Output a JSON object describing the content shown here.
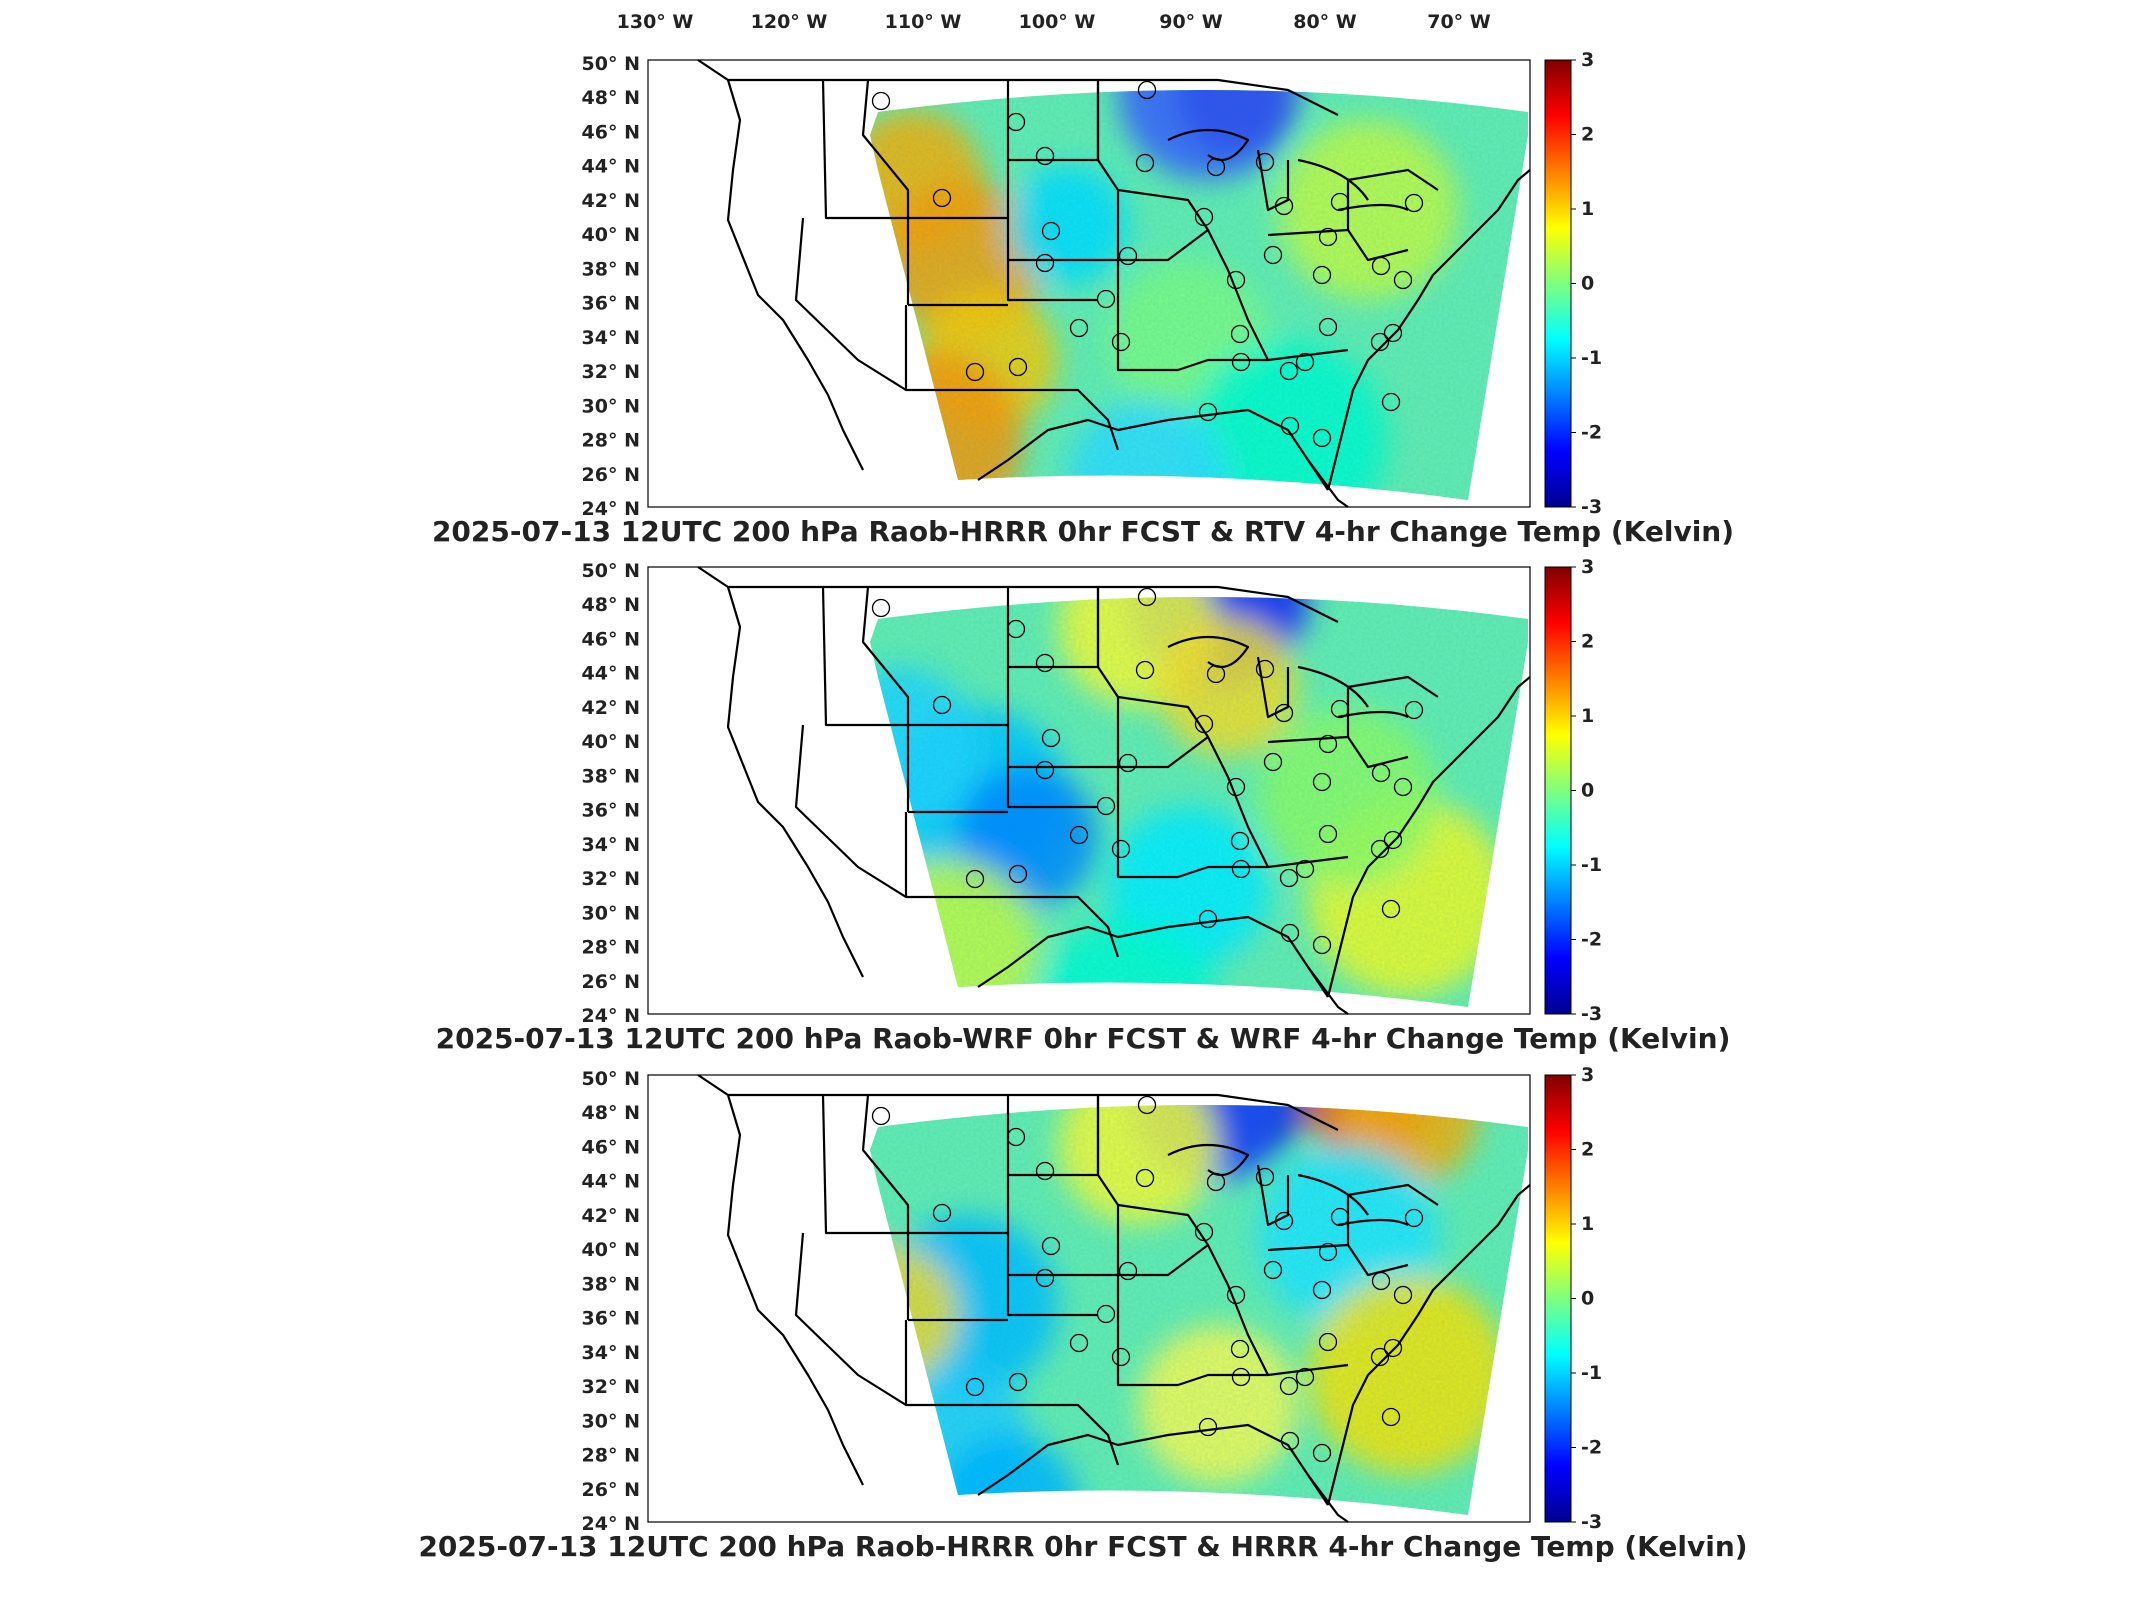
{
  "longitude_labels": [
    "130° W",
    "120° W",
    "110° W",
    "100° W",
    "90° W",
    "80° W",
    "70° W"
  ],
  "latitude_labels": [
    "50° N",
    "48° N",
    "46° N",
    "44° N",
    "42° N",
    "40° N",
    "38° N",
    "36° N",
    "34° N",
    "32° N",
    "30° N",
    "28° N",
    "26° N",
    "24° N"
  ],
  "colorbar": {
    "ticks": [
      "3",
      "2",
      "1",
      "0",
      "-1",
      "-2",
      "-3"
    ],
    "range": [
      -3,
      3
    ],
    "colormap": "jet"
  },
  "panels": [
    {
      "title": "2025-07-13 12UTC 200 hPa Raob-HRRR 0hr FCST & RTV 4-hr Change Temp (Kelvin)",
      "field": "rtv"
    },
    {
      "title": "2025-07-13 12UTC 200 hPa Raob-WRF 0hr FCST & WRF 4-hr Change Temp (Kelvin)",
      "field": "wrf"
    },
    {
      "title": "2025-07-13 12UTC 200 hPa Raob-HRRR 0hr FCST & HRRR 4-hr Change Temp (Kelvin)",
      "field": "hrrr"
    }
  ],
  "colors": {
    "background": "#ffffff",
    "map_lines": "#000000",
    "colormap_low": "#00008f",
    "colormap_mid": "#7fff7f",
    "colormap_high": "#800000"
  }
}
